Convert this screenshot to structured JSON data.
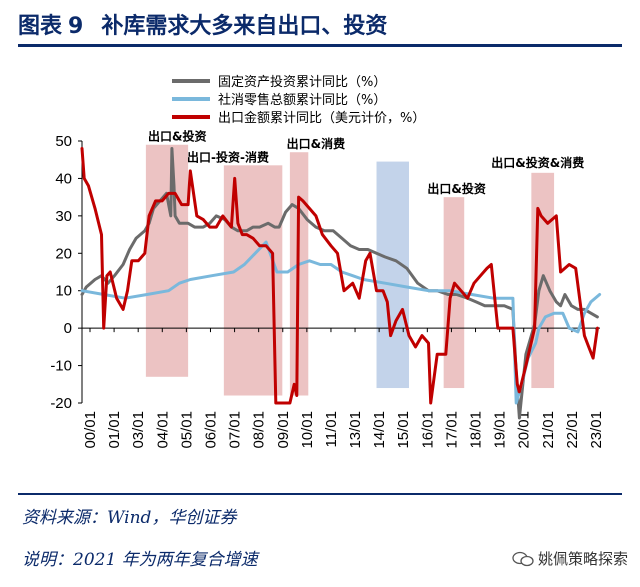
{
  "header": {
    "title_prefix": "图表",
    "title_number": "9",
    "title_text": "补库需求大多来自出口、投资"
  },
  "footer": {
    "source": "资料来源：Wind，华创证券",
    "note": "说明：2021 年为两年复合增速"
  },
  "watermark": {
    "text": "姚佩策略探索"
  },
  "colors": {
    "fixed_investment": "#6b6b6b",
    "retail_sales": "#7ab8dc",
    "exports": "#c00000",
    "red_band": "#e9b8b8",
    "blue_band": "#b9cbe6",
    "title_blue": "#0b2a6a"
  },
  "chart_data": {
    "type": "line",
    "xlabel": "",
    "ylabel": "",
    "ylim": [
      -20,
      50
    ],
    "yticks": [
      -20,
      -10,
      0,
      10,
      20,
      30,
      40,
      50
    ],
    "x_range": [
      2000.0,
      2023.92
    ],
    "xticks": [
      "00/01",
      "01/01",
      "03/01",
      "04/01",
      "05/01",
      "06/01",
      "07/01",
      "08/01",
      "09/01",
      "10/01",
      "11/01",
      "13/01",
      "14/01",
      "15/01",
      "16/01",
      "17/01",
      "18/01",
      "19/01",
      "20/01",
      "21/01",
      "22/01",
      "23/01"
    ],
    "legend": "top-center",
    "series": [
      {
        "name": "固定资产投资累计同比（%）",
        "color_key": "fixed_investment",
        "x": [
          2000.0,
          2000.2,
          2000.4,
          2000.6,
          2000.9,
          2001.2,
          2001.5,
          2001.9,
          2002.2,
          2002.5,
          2002.9,
          2003.1,
          2003.3,
          2003.6,
          2003.9,
          2004.1,
          2004.15,
          2004.25,
          2004.3,
          2004.5,
          2004.9,
          2005.2,
          2005.6,
          2005.9,
          2006.2,
          2006.6,
          2006.9,
          2007.2,
          2007.6,
          2007.9,
          2008.2,
          2008.6,
          2008.9,
          2009.1,
          2009.4,
          2009.7,
          2010.0,
          2010.4,
          2010.8,
          2011.2,
          2011.6,
          2012.0,
          2012.4,
          2012.8,
          2013.2,
          2013.6,
          2014.0,
          2014.5,
          2015.0,
          2015.5,
          2016.0,
          2016.4,
          2016.9,
          2017.3,
          2017.8,
          2018.2,
          2018.6,
          2019.0,
          2019.5,
          2019.9,
          2020.05,
          2020.2,
          2020.5,
          2020.9,
          2021.1,
          2021.3,
          2021.6,
          2021.9,
          2022.1,
          2022.3,
          2022.6,
          2022.9,
          2023.2,
          2023.5,
          2023.8
        ],
        "y": [
          9,
          11,
          12,
          13,
          14,
          12,
          14,
          17,
          21,
          24,
          26,
          28,
          32,
          34,
          36,
          30,
          48,
          38,
          30,
          28,
          28,
          27,
          27,
          28,
          30,
          29,
          27,
          26,
          26,
          27,
          27,
          28,
          27,
          27,
          31,
          33,
          32,
          29,
          27,
          26,
          26,
          24,
          22,
          21,
          21,
          20,
          19,
          18,
          16,
          12,
          10,
          10,
          9,
          9,
          8,
          7,
          6,
          6,
          6,
          5,
          -12,
          -24,
          -7,
          1,
          10,
          14,
          10,
          7,
          6,
          9,
          6,
          5,
          5,
          4,
          3
        ]
      },
      {
        "name": "社消零售总额累计同比（%）",
        "color_key": "retail_sales",
        "x": [
          2000.0,
          2001.0,
          2002.0,
          2003.0,
          2004.0,
          2004.5,
          2005.0,
          2006.0,
          2007.0,
          2007.5,
          2008.0,
          2008.5,
          2009.0,
          2009.5,
          2010.0,
          2010.5,
          2011.0,
          2011.5,
          2012.0,
          2012.5,
          2013.0,
          2014.0,
          2015.0,
          2016.0,
          2017.0,
          2018.0,
          2019.0,
          2019.9,
          2020.05,
          2020.3,
          2020.6,
          2020.95,
          2021.1,
          2021.4,
          2021.8,
          2022.2,
          2022.5,
          2022.9,
          2023.2,
          2023.5,
          2023.9
        ],
        "y": [
          10,
          9,
          8,
          9,
          10,
          12,
          13,
          14,
          15,
          17,
          20,
          23,
          15,
          15,
          17,
          18,
          17,
          17,
          15,
          14,
          13,
          12,
          11,
          10,
          10,
          9,
          8,
          8,
          -20,
          -15,
          -8,
          -4,
          0,
          3,
          4,
          4,
          0,
          -1,
          4,
          7,
          9
        ]
      },
      {
        "name": "出口金额累计同比（美元计价，%）",
        "color_key": "exports",
        "x": [
          2000.0,
          2000.1,
          2000.3,
          2000.6,
          2000.9,
          2001.0,
          2001.15,
          2001.3,
          2001.6,
          2001.9,
          2002.1,
          2002.3,
          2002.6,
          2002.9,
          2003.1,
          2003.4,
          2003.7,
          2004.0,
          2004.3,
          2004.6,
          2004.9,
          2005.0,
          2005.3,
          2005.6,
          2005.9,
          2006.2,
          2006.5,
          2006.9,
          2007.05,
          2007.2,
          2007.4,
          2007.6,
          2007.9,
          2008.2,
          2008.5,
          2008.8,
          2008.95,
          2009.1,
          2009.3,
          2009.6,
          2009.8,
          2009.92,
          2010.0,
          2010.2,
          2010.5,
          2010.8,
          2011.1,
          2011.5,
          2011.8,
          2012.1,
          2012.5,
          2012.8,
          2013.1,
          2013.3,
          2013.6,
          2013.9,
          2014.1,
          2014.25,
          2014.5,
          2014.8,
          2015.1,
          2015.4,
          2015.7,
          2016.0,
          2016.1,
          2016.4,
          2016.8,
          2017.0,
          2017.2,
          2017.5,
          2017.8,
          2018.1,
          2018.4,
          2018.7,
          2018.9,
          2019.2,
          2019.5,
          2019.9,
          2020.1,
          2020.2,
          2020.5,
          2020.9,
          2021.05,
          2021.2,
          2021.5,
          2021.9,
          2022.1,
          2022.3,
          2022.5,
          2022.8,
          2023.0,
          2023.2,
          2023.4,
          2023.6,
          2023.8
        ],
        "y": [
          48,
          40,
          38,
          32,
          25,
          0,
          14,
          15,
          8,
          5,
          10,
          18,
          18,
          20,
          30,
          34,
          34,
          36,
          36,
          33,
          33,
          42,
          30,
          29,
          27,
          27,
          30,
          27,
          40,
          28,
          25,
          25,
          24,
          22,
          22,
          20,
          -20,
          -20,
          -20,
          -20,
          -15,
          -18,
          35,
          34,
          32,
          30,
          25,
          22,
          20,
          10,
          12,
          8,
          18,
          20,
          10,
          10,
          7,
          -2,
          2,
          5,
          -2,
          -5,
          -2,
          -4,
          -20,
          -7,
          -7,
          8,
          12,
          10,
          8,
          12,
          14,
          16,
          17,
          0,
          0,
          0,
          -15,
          -17,
          -10,
          0,
          32,
          30,
          28,
          30,
          15,
          16,
          17,
          16,
          7,
          -2,
          -5,
          -8,
          0
        ]
      }
    ],
    "bands": [
      {
        "x0": 2002.95,
        "x1": 2004.9,
        "y0": -13,
        "y1": 49,
        "color_key": "red_band"
      },
      {
        "x0": 2006.55,
        "x1": 2009.25,
        "y0": -18,
        "y1": 43.5,
        "color_key": "red_band"
      },
      {
        "x0": 2009.6,
        "x1": 2010.45,
        "y0": -18,
        "y1": 47,
        "color_key": "red_band"
      },
      {
        "x0": 2013.6,
        "x1": 2015.1,
        "y0": -16,
        "y1": 44.5,
        "color_key": "blue_band"
      },
      {
        "x0": 2016.7,
        "x1": 2017.65,
        "y0": -16,
        "y1": 35,
        "color_key": "red_band"
      },
      {
        "x0": 2020.75,
        "x1": 2021.8,
        "y0": -16,
        "y1": 41.5,
        "color_key": "red_band"
      }
    ],
    "annotations": [
      {
        "text": "出口&投资",
        "x": 2003.05,
        "y": 49
      },
      {
        "text": "出口-投资-消费",
        "x": 2004.85,
        "y": 43.5
      },
      {
        "text": "出口&消费",
        "x": 2009.45,
        "y": 47
      },
      {
        "text": "出口&投资",
        "x": 2015.95,
        "y": 35
      },
      {
        "text": "出口&投资&消费",
        "x": 2018.9,
        "y": 42
      }
    ]
  }
}
